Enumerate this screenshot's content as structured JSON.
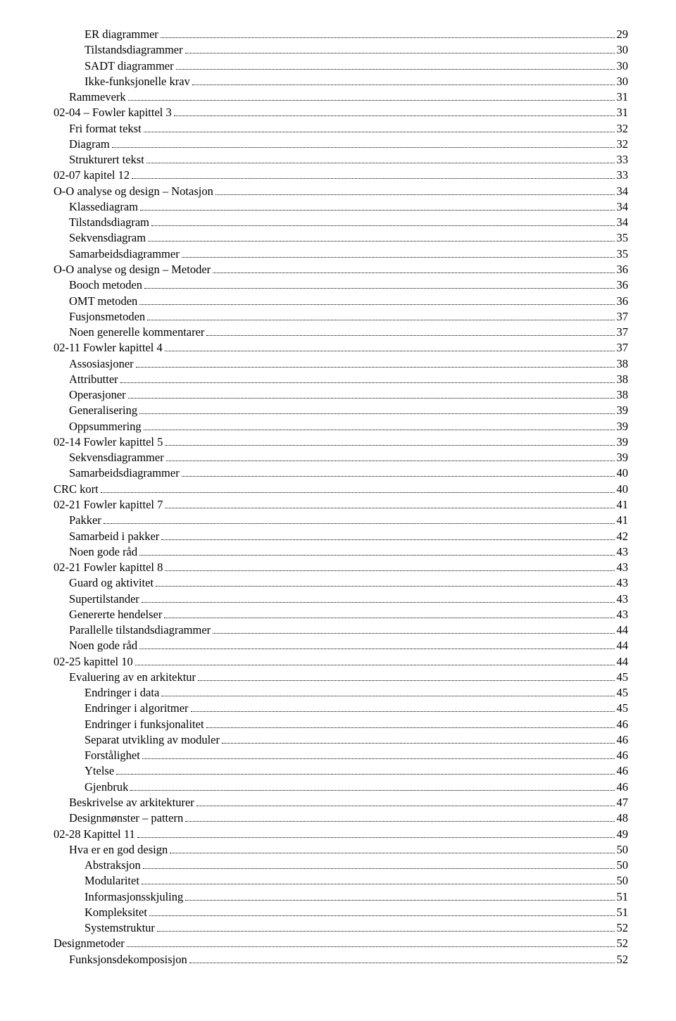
{
  "toc": [
    {
      "indent": 2,
      "label": "ER diagrammer",
      "page": "29"
    },
    {
      "indent": 2,
      "label": "Tilstandsdiagrammer",
      "page": "30"
    },
    {
      "indent": 2,
      "label": "SADT diagrammer",
      "page": "30"
    },
    {
      "indent": 2,
      "label": "Ikke-funksjonelle krav",
      "page": "30"
    },
    {
      "indent": 1,
      "label": "Rammeverk",
      "page": "31"
    },
    {
      "indent": 0,
      "label": "02-04 – Fowler kapittel 3",
      "page": "31"
    },
    {
      "indent": 1,
      "label": "Fri format tekst",
      "page": "32"
    },
    {
      "indent": 1,
      "label": "Diagram",
      "page": "32"
    },
    {
      "indent": 1,
      "label": "Strukturert tekst",
      "page": "33"
    },
    {
      "indent": 0,
      "label": "02-07 kapitel 12",
      "page": "33"
    },
    {
      "indent": 0,
      "label": "O-O analyse og design – Notasjon",
      "page": "34"
    },
    {
      "indent": 1,
      "label": "Klassediagram",
      "page": "34"
    },
    {
      "indent": 1,
      "label": "Tilstandsdiagram",
      "page": "34"
    },
    {
      "indent": 1,
      "label": "Sekvensdiagram",
      "page": "35"
    },
    {
      "indent": 1,
      "label": "Samarbeidsdiagrammer",
      "page": "35"
    },
    {
      "indent": 0,
      "label": "O-O analyse og design – Metoder",
      "page": "36"
    },
    {
      "indent": 1,
      "label": "Booch metoden",
      "page": "36"
    },
    {
      "indent": 1,
      "label": "OMT metoden",
      "page": "36"
    },
    {
      "indent": 1,
      "label": "Fusjonsmetoden",
      "page": "37"
    },
    {
      "indent": 1,
      "label": "Noen generelle kommentarer",
      "page": "37"
    },
    {
      "indent": 0,
      "label": "02-11 Fowler kapittel 4",
      "page": "37"
    },
    {
      "indent": 1,
      "label": "Assosiasjoner",
      "page": "38"
    },
    {
      "indent": 1,
      "label": "Attributter",
      "page": "38"
    },
    {
      "indent": 1,
      "label": "Operasjoner",
      "page": "38"
    },
    {
      "indent": 1,
      "label": "Generalisering",
      "page": "39"
    },
    {
      "indent": 1,
      "label": "Oppsummering",
      "page": "39"
    },
    {
      "indent": 0,
      "label": "02-14 Fowler kapittel 5",
      "page": "39"
    },
    {
      "indent": 1,
      "label": "Sekvensdiagrammer",
      "page": "39"
    },
    {
      "indent": 1,
      "label": "Samarbeidsdiagrammer",
      "page": "40"
    },
    {
      "indent": 0,
      "label": "CRC kort",
      "page": "40"
    },
    {
      "indent": 0,
      "label": "02-21 Fowler kapittel 7",
      "page": "41"
    },
    {
      "indent": 1,
      "label": "Pakker",
      "page": "41"
    },
    {
      "indent": 1,
      "label": "Samarbeid i  pakker",
      "page": "42"
    },
    {
      "indent": 1,
      "label": "Noen gode råd",
      "page": "43"
    },
    {
      "indent": 0,
      "label": "02-21 Fowler kapittel 8",
      "page": "43"
    },
    {
      "indent": 1,
      "label": "Guard og aktivitet",
      "page": "43"
    },
    {
      "indent": 1,
      "label": "Supertilstander",
      "page": "43"
    },
    {
      "indent": 1,
      "label": "Genererte hendelser",
      "page": "43"
    },
    {
      "indent": 1,
      "label": "Parallelle tilstandsdiagrammer",
      "page": "44"
    },
    {
      "indent": 1,
      "label": "Noen gode råd",
      "page": "44"
    },
    {
      "indent": 0,
      "label": "02-25 kapittel 10",
      "page": "44"
    },
    {
      "indent": 1,
      "label": "Evaluering av en arkitektur",
      "page": "45"
    },
    {
      "indent": 2,
      "label": "Endringer i data",
      "page": "45"
    },
    {
      "indent": 2,
      "label": "Endringer i algoritmer",
      "page": "45"
    },
    {
      "indent": 2,
      "label": "Endringer i funksjonalitet",
      "page": "46"
    },
    {
      "indent": 2,
      "label": "Separat utvikling av moduler",
      "page": "46"
    },
    {
      "indent": 2,
      "label": "Forstålighet",
      "page": "46"
    },
    {
      "indent": 2,
      "label": "Ytelse",
      "page": "46"
    },
    {
      "indent": 2,
      "label": "Gjenbruk",
      "page": "46"
    },
    {
      "indent": 1,
      "label": "Beskrivelse av arkitekturer",
      "page": "47"
    },
    {
      "indent": 1,
      "label": "Designmønster – pattern",
      "page": "48"
    },
    {
      "indent": 0,
      "label": "02-28 Kapittel 11",
      "page": "49"
    },
    {
      "indent": 1,
      "label": "Hva er en god design",
      "page": "50"
    },
    {
      "indent": 2,
      "label": "Abstraksjon",
      "page": "50"
    },
    {
      "indent": 2,
      "label": "Modularitet",
      "page": "50"
    },
    {
      "indent": 2,
      "label": "Informasjonsskjuling",
      "page": "51"
    },
    {
      "indent": 2,
      "label": "Kompleksitet",
      "page": "51"
    },
    {
      "indent": 2,
      "label": "Systemstruktur",
      "page": "52"
    },
    {
      "indent": 0,
      "label": "Designmetoder",
      "page": "52"
    },
    {
      "indent": 1,
      "label": "Funksjonsdekomposisjon",
      "page": "52"
    }
  ]
}
